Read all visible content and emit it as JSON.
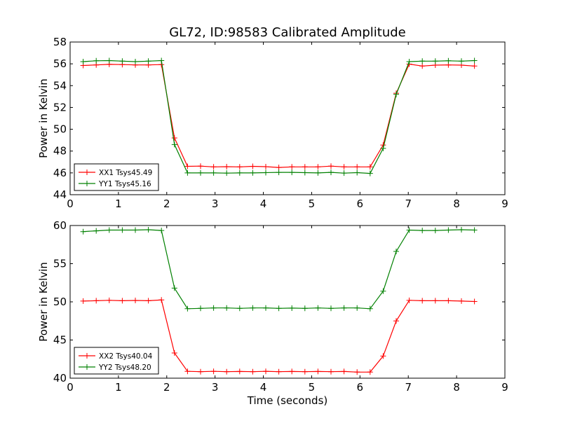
{
  "title": "GL72, ID:98583 Calibrated Amplitude",
  "colors": {
    "red": "#ff0000",
    "green": "#008000"
  },
  "chart_data": [
    {
      "type": "line",
      "title": "GL72, ID:98583 Calibrated Amplitude",
      "xlabel": "",
      "ylabel": "Power in Kelvin",
      "xlim": [
        0,
        9
      ],
      "ylim": [
        44,
        58
      ],
      "xticks": [
        "0",
        "1",
        "2",
        "3",
        "4",
        "5",
        "6",
        "7",
        "8",
        "9"
      ],
      "yticks": [
        "44",
        "46",
        "48",
        "50",
        "52",
        "54",
        "56",
        "58"
      ],
      "grid": false,
      "legend_position": "lower-left",
      "x": [
        0.27,
        0.54,
        0.81,
        1.08,
        1.35,
        1.62,
        1.89,
        2.16,
        2.43,
        2.7,
        2.97,
        3.24,
        3.51,
        3.78,
        4.05,
        4.32,
        4.59,
        4.86,
        5.13,
        5.4,
        5.67,
        5.94,
        6.21,
        6.48,
        6.75,
        7.02,
        7.29,
        7.56,
        7.83,
        8.1,
        8.37
      ],
      "series": [
        {
          "name": "XX1 Tsys45.49",
          "color": "#ff0000",
          "values": [
            55.85,
            55.9,
            55.95,
            55.93,
            55.9,
            55.9,
            55.93,
            49.2,
            46.6,
            46.62,
            46.55,
            46.57,
            46.55,
            46.6,
            46.57,
            46.5,
            46.55,
            46.55,
            46.55,
            46.62,
            46.55,
            46.55,
            46.55,
            48.55,
            53.3,
            55.98,
            55.8,
            55.88,
            55.9,
            55.88,
            55.8
          ]
        },
        {
          "name": "YY1 Tsys45.16",
          "color": "#008000",
          "values": [
            56.2,
            56.28,
            56.3,
            56.25,
            56.2,
            56.25,
            56.3,
            48.6,
            46.0,
            46.0,
            46.0,
            45.98,
            46.0,
            46.0,
            46.02,
            46.05,
            46.05,
            46.02,
            46.0,
            46.05,
            45.98,
            46.02,
            45.95,
            48.25,
            53.2,
            56.2,
            56.25,
            56.25,
            56.28,
            56.25,
            56.3
          ]
        }
      ]
    },
    {
      "type": "line",
      "title": "",
      "xlabel": "Time (seconds)",
      "ylabel": "Power in Kelvin",
      "xlim": [
        0,
        9
      ],
      "ylim": [
        40,
        60
      ],
      "xticks": [
        "0",
        "1",
        "2",
        "3",
        "4",
        "5",
        "6",
        "7",
        "8",
        "9"
      ],
      "yticks": [
        "40",
        "45",
        "50",
        "55",
        "60"
      ],
      "grid": false,
      "legend_position": "lower-left",
      "x": [
        0.27,
        0.54,
        0.81,
        1.08,
        1.35,
        1.62,
        1.89,
        2.16,
        2.43,
        2.7,
        2.97,
        3.24,
        3.51,
        3.78,
        4.05,
        4.32,
        4.59,
        4.86,
        5.13,
        5.4,
        5.67,
        5.94,
        6.21,
        6.48,
        6.75,
        7.02,
        7.29,
        7.56,
        7.83,
        8.1,
        8.37
      ],
      "series": [
        {
          "name": "XX2 Tsys40.04",
          "color": "#ff0000",
          "values": [
            50.1,
            50.15,
            50.2,
            50.15,
            50.18,
            50.15,
            50.25,
            43.3,
            40.9,
            40.85,
            40.9,
            40.85,
            40.88,
            40.85,
            40.9,
            40.85,
            40.88,
            40.85,
            40.88,
            40.85,
            40.88,
            40.8,
            40.8,
            42.9,
            47.5,
            50.2,
            50.15,
            50.15,
            50.15,
            50.1,
            50.05
          ]
        },
        {
          "name": "YY2 Tsys48.20",
          "color": "#008000",
          "values": [
            59.2,
            59.3,
            59.4,
            59.4,
            59.4,
            59.45,
            59.35,
            51.8,
            49.1,
            49.15,
            49.2,
            49.2,
            49.15,
            49.2,
            49.2,
            49.15,
            49.18,
            49.15,
            49.2,
            49.15,
            49.2,
            49.2,
            49.1,
            51.4,
            56.6,
            59.4,
            59.35,
            59.35,
            59.4,
            59.45,
            59.4
          ]
        }
      ]
    }
  ]
}
